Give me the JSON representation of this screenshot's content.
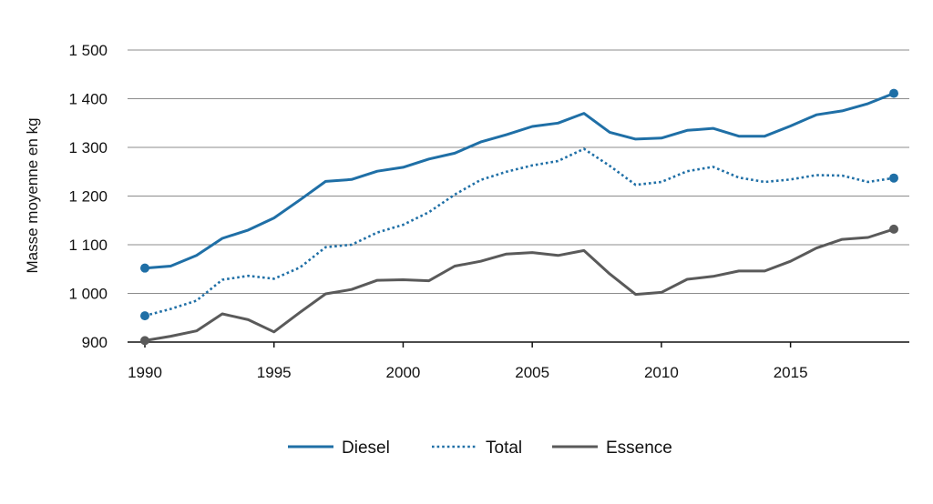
{
  "chart_data": {
    "type": "line",
    "title": "",
    "xlabel": "",
    "ylabel": "Masse moyenne en kg",
    "xlim": [
      1990,
      2019
    ],
    "ylim": [
      900,
      1500
    ],
    "x_ticks": [
      1990,
      1995,
      2000,
      2005,
      2010,
      2015
    ],
    "x_tick_labels": [
      "1990",
      "1995",
      "2000",
      "2005",
      "2010",
      "2015"
    ],
    "y_ticks": [
      900,
      1000,
      1100,
      1200,
      1300,
      1400,
      1500
    ],
    "y_tick_labels": [
      "900",
      "1 000",
      "1 100",
      "1 200",
      "1 300",
      "1 400",
      "1 500"
    ],
    "grid": "horizontal",
    "legend_position": "bottom",
    "x": [
      1990,
      1991,
      1992,
      1993,
      1994,
      1995,
      1996,
      1997,
      1998,
      1999,
      2000,
      2001,
      2002,
      2003,
      2004,
      2005,
      2006,
      2007,
      2008,
      2009,
      2010,
      2011,
      2012,
      2013,
      2014,
      2015,
      2016,
      2017,
      2018,
      2019
    ],
    "series": [
      {
        "name": "Diesel",
        "color": "#1f6fa6",
        "style": "solid",
        "values": [
          1052,
          1056,
          1078,
          1113,
          1130,
          1155,
          1192,
          1230,
          1234,
          1251,
          1259,
          1276,
          1288,
          1311,
          1326,
          1343,
          1350,
          1370,
          1331,
          1317,
          1319,
          1335,
          1339,
          1323,
          1323,
          1344,
          1367,
          1375,
          1390,
          1411
        ]
      },
      {
        "name": "Total",
        "color": "#1f6fa6",
        "style": "dotted",
        "values": [
          954,
          968,
          985,
          1028,
          1036,
          1030,
          1053,
          1095,
          1100,
          1125,
          1141,
          1167,
          1203,
          1233,
          1250,
          1263,
          1272,
          1297,
          1262,
          1223,
          1229,
          1251,
          1260,
          1238,
          1229,
          1234,
          1243,
          1242,
          1229,
          1237
        ]
      },
      {
        "name": "Essence",
        "color": "#5a5a5a",
        "style": "solid",
        "values": [
          903,
          912,
          923,
          958,
          946,
          921,
          961,
          999,
          1008,
          1027,
          1028,
          1026,
          1056,
          1066,
          1081,
          1084,
          1078,
          1088,
          1040,
          998,
          1002,
          1029,
          1035,
          1046,
          1046,
          1066,
          1093,
          1111,
          1115,
          1132
        ]
      }
    ],
    "endpoint_markers": [
      "first",
      "last"
    ]
  }
}
